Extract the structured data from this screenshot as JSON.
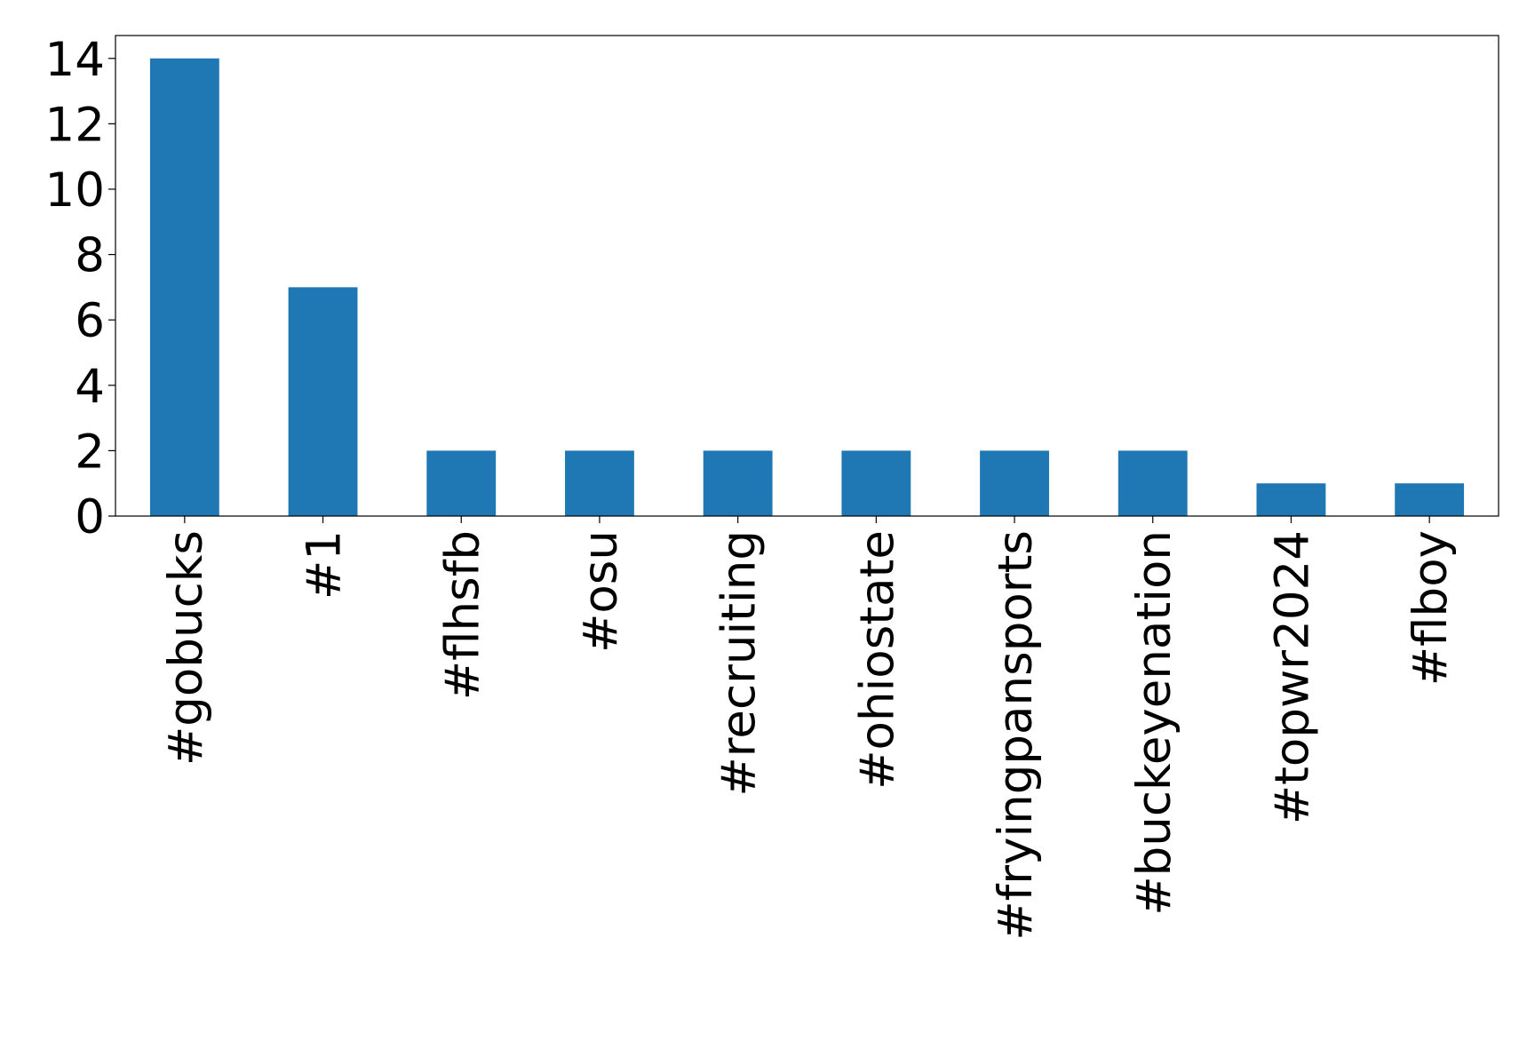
{
  "chart_data": {
    "type": "bar",
    "categories": [
      "#gobucks",
      "#1",
      "#flhsfb",
      "#osu",
      "#recruiting",
      "#ohiostate",
      "#fryingpansports",
      "#buckeyenation",
      "#topwr2024",
      "#flboy"
    ],
    "values": [
      14,
      7,
      2,
      2,
      2,
      2,
      2,
      2,
      1,
      1
    ],
    "color": "#1f77b4",
    "ylim": [
      0,
      14.7
    ],
    "yticks": [
      0,
      2,
      4,
      6,
      8,
      10,
      12,
      14
    ],
    "grid": false
  }
}
